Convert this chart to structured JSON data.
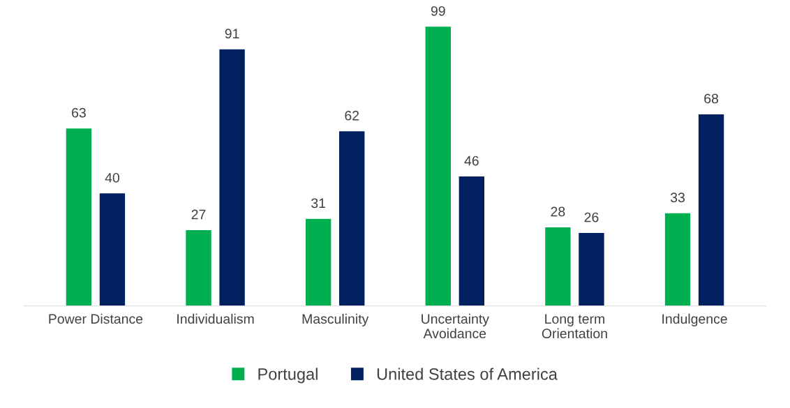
{
  "chart_data": {
    "type": "bar",
    "categories": [
      "Power Distance",
      "Individualism",
      "Masculinity",
      "Uncertainty\nAvoidance",
      "Long term\nOrientation",
      "Indulgence"
    ],
    "series": [
      {
        "name": "Portugal",
        "color": "#00b050",
        "values": [
          63,
          27,
          31,
          99,
          28,
          33
        ]
      },
      {
        "name": "United States of America",
        "color": "#002060",
        "values": [
          40,
          91,
          62,
          46,
          26,
          68
        ]
      }
    ],
    "data_labels": true,
    "grid": false,
    "legend": "bottom"
  }
}
